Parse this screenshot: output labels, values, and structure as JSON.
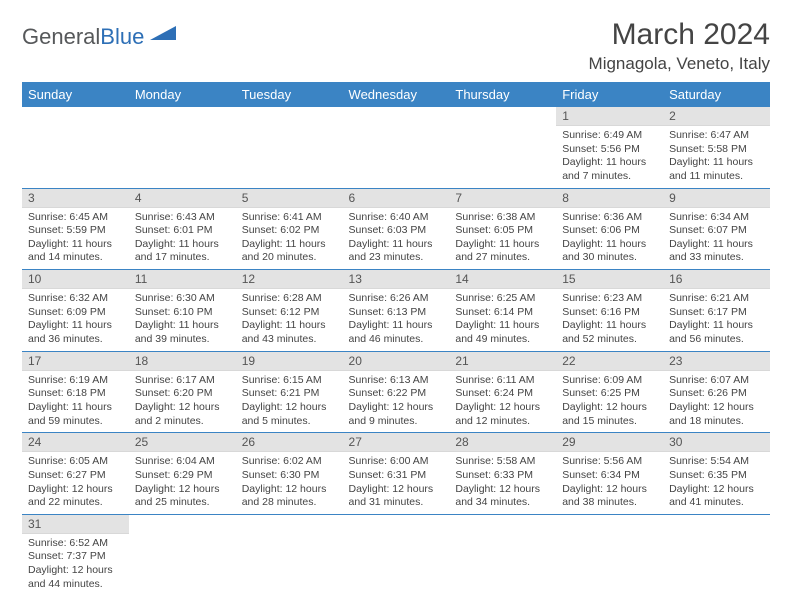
{
  "logo": {
    "text1": "General",
    "text2": "Blue"
  },
  "title": "March 2024",
  "location": "Mignagola, Veneto, Italy",
  "colors": {
    "header_bg": "#3b84c4",
    "header_fg": "#ffffff",
    "daynum_bg": "#e3e3e3",
    "row_divider": "#3b84c4",
    "logo_gray": "#56585a",
    "logo_blue": "#2d6fb6"
  },
  "weekdays": [
    "Sunday",
    "Monday",
    "Tuesday",
    "Wednesday",
    "Thursday",
    "Friday",
    "Saturday"
  ],
  "grid": [
    [
      null,
      null,
      null,
      null,
      null,
      {
        "n": "1",
        "sr": "Sunrise: 6:49 AM",
        "ss": "Sunset: 5:56 PM",
        "dl": "Daylight: 11 hours and 7 minutes."
      },
      {
        "n": "2",
        "sr": "Sunrise: 6:47 AM",
        "ss": "Sunset: 5:58 PM",
        "dl": "Daylight: 11 hours and 11 minutes."
      }
    ],
    [
      {
        "n": "3",
        "sr": "Sunrise: 6:45 AM",
        "ss": "Sunset: 5:59 PM",
        "dl": "Daylight: 11 hours and 14 minutes."
      },
      {
        "n": "4",
        "sr": "Sunrise: 6:43 AM",
        "ss": "Sunset: 6:01 PM",
        "dl": "Daylight: 11 hours and 17 minutes."
      },
      {
        "n": "5",
        "sr": "Sunrise: 6:41 AM",
        "ss": "Sunset: 6:02 PM",
        "dl": "Daylight: 11 hours and 20 minutes."
      },
      {
        "n": "6",
        "sr": "Sunrise: 6:40 AM",
        "ss": "Sunset: 6:03 PM",
        "dl": "Daylight: 11 hours and 23 minutes."
      },
      {
        "n": "7",
        "sr": "Sunrise: 6:38 AM",
        "ss": "Sunset: 6:05 PM",
        "dl": "Daylight: 11 hours and 27 minutes."
      },
      {
        "n": "8",
        "sr": "Sunrise: 6:36 AM",
        "ss": "Sunset: 6:06 PM",
        "dl": "Daylight: 11 hours and 30 minutes."
      },
      {
        "n": "9",
        "sr": "Sunrise: 6:34 AM",
        "ss": "Sunset: 6:07 PM",
        "dl": "Daylight: 11 hours and 33 minutes."
      }
    ],
    [
      {
        "n": "10",
        "sr": "Sunrise: 6:32 AM",
        "ss": "Sunset: 6:09 PM",
        "dl": "Daylight: 11 hours and 36 minutes."
      },
      {
        "n": "11",
        "sr": "Sunrise: 6:30 AM",
        "ss": "Sunset: 6:10 PM",
        "dl": "Daylight: 11 hours and 39 minutes."
      },
      {
        "n": "12",
        "sr": "Sunrise: 6:28 AM",
        "ss": "Sunset: 6:12 PM",
        "dl": "Daylight: 11 hours and 43 minutes."
      },
      {
        "n": "13",
        "sr": "Sunrise: 6:26 AM",
        "ss": "Sunset: 6:13 PM",
        "dl": "Daylight: 11 hours and 46 minutes."
      },
      {
        "n": "14",
        "sr": "Sunrise: 6:25 AM",
        "ss": "Sunset: 6:14 PM",
        "dl": "Daylight: 11 hours and 49 minutes."
      },
      {
        "n": "15",
        "sr": "Sunrise: 6:23 AM",
        "ss": "Sunset: 6:16 PM",
        "dl": "Daylight: 11 hours and 52 minutes."
      },
      {
        "n": "16",
        "sr": "Sunrise: 6:21 AM",
        "ss": "Sunset: 6:17 PM",
        "dl": "Daylight: 11 hours and 56 minutes."
      }
    ],
    [
      {
        "n": "17",
        "sr": "Sunrise: 6:19 AM",
        "ss": "Sunset: 6:18 PM",
        "dl": "Daylight: 11 hours and 59 minutes."
      },
      {
        "n": "18",
        "sr": "Sunrise: 6:17 AM",
        "ss": "Sunset: 6:20 PM",
        "dl": "Daylight: 12 hours and 2 minutes."
      },
      {
        "n": "19",
        "sr": "Sunrise: 6:15 AM",
        "ss": "Sunset: 6:21 PM",
        "dl": "Daylight: 12 hours and 5 minutes."
      },
      {
        "n": "20",
        "sr": "Sunrise: 6:13 AM",
        "ss": "Sunset: 6:22 PM",
        "dl": "Daylight: 12 hours and 9 minutes."
      },
      {
        "n": "21",
        "sr": "Sunrise: 6:11 AM",
        "ss": "Sunset: 6:24 PM",
        "dl": "Daylight: 12 hours and 12 minutes."
      },
      {
        "n": "22",
        "sr": "Sunrise: 6:09 AM",
        "ss": "Sunset: 6:25 PM",
        "dl": "Daylight: 12 hours and 15 minutes."
      },
      {
        "n": "23",
        "sr": "Sunrise: 6:07 AM",
        "ss": "Sunset: 6:26 PM",
        "dl": "Daylight: 12 hours and 18 minutes."
      }
    ],
    [
      {
        "n": "24",
        "sr": "Sunrise: 6:05 AM",
        "ss": "Sunset: 6:27 PM",
        "dl": "Daylight: 12 hours and 22 minutes."
      },
      {
        "n": "25",
        "sr": "Sunrise: 6:04 AM",
        "ss": "Sunset: 6:29 PM",
        "dl": "Daylight: 12 hours and 25 minutes."
      },
      {
        "n": "26",
        "sr": "Sunrise: 6:02 AM",
        "ss": "Sunset: 6:30 PM",
        "dl": "Daylight: 12 hours and 28 minutes."
      },
      {
        "n": "27",
        "sr": "Sunrise: 6:00 AM",
        "ss": "Sunset: 6:31 PM",
        "dl": "Daylight: 12 hours and 31 minutes."
      },
      {
        "n": "28",
        "sr": "Sunrise: 5:58 AM",
        "ss": "Sunset: 6:33 PM",
        "dl": "Daylight: 12 hours and 34 minutes."
      },
      {
        "n": "29",
        "sr": "Sunrise: 5:56 AM",
        "ss": "Sunset: 6:34 PM",
        "dl": "Daylight: 12 hours and 38 minutes."
      },
      {
        "n": "30",
        "sr": "Sunrise: 5:54 AM",
        "ss": "Sunset: 6:35 PM",
        "dl": "Daylight: 12 hours and 41 minutes."
      }
    ],
    [
      {
        "n": "31",
        "sr": "Sunrise: 6:52 AM",
        "ss": "Sunset: 7:37 PM",
        "dl": "Daylight: 12 hours and 44 minutes."
      },
      null,
      null,
      null,
      null,
      null,
      null
    ]
  ]
}
